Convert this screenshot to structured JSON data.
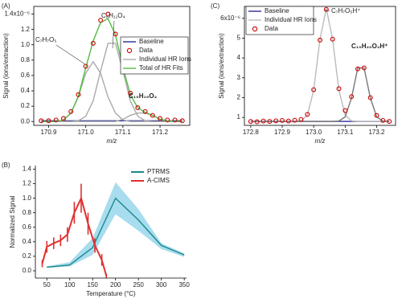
{
  "chart_data": [
    {
      "type": "line",
      "panel_label": "(A)",
      "x_label": "m/z",
      "y_label": "Signal (ions/extraction)",
      "frame": true,
      "legend": "upper right",
      "xlim": [
        170.86,
        171.28
      ],
      "ylim": [
        -0.05,
        1.5
      ],
      "xticks": [
        170.9,
        {
          "value": 171,
          "label": "171.0"
        },
        171.1,
        171.2
      ],
      "yticks": [
        {
          "value": 0,
          "label": "0.0"
        },
        0.2,
        0.4,
        0.6,
        0.8,
        {
          "value": 1,
          "label": "1.0"
        },
        1.2,
        {
          "value": 1.4,
          "label": "1.4x10⁻⁶"
        }
      ],
      "annotations": [
        "C₇H₇O₅",
        "C₈H₁₁O₄",
        "C₁₀H₁₉O₂"
      ],
      "x": [
        170.88,
        170.9,
        170.92,
        170.94,
        170.96,
        170.98,
        171.0,
        171.02,
        171.04,
        171.06,
        171.08,
        171.1,
        171.12,
        171.14,
        171.16,
        171.18,
        171.2,
        171.22,
        171.24,
        171.26
      ],
      "series": [
        {
          "name": "Baseline",
          "color": "#2b2b9a",
          "values": [
            0.01,
            0.01,
            0.01,
            0.01,
            0.01,
            0.01,
            0.01,
            0.01,
            0.01,
            0.01,
            0.01,
            0.01,
            0.01,
            0.01,
            0.01,
            0.01,
            0.01,
            0.01,
            0.01,
            0.01
          ]
        },
        {
          "name": "Data",
          "color": "#cc1111",
          "marker": "circle",
          "line": false,
          "values": [
            0.01,
            0.01,
            0.02,
            0.04,
            0.13,
            0.35,
            0.72,
            1.02,
            1.32,
            1.4,
            1.14,
            0.7,
            0.37,
            0.18,
            0.13,
            0.08,
            0.04,
            0.02,
            0.02,
            0.01
          ]
        },
        {
          "name": "Individual HR Ions",
          "color": "#aaaaaa",
          "values": [
            0,
            0,
            0,
            0.02,
            0.11,
            0.32,
            0.63,
            0.78,
            0.63,
            0.32,
            0.11,
            0.02,
            0,
            0,
            0,
            0,
            0,
            0,
            0,
            0
          ]
        },
        {
          "color": "#aaaaaa",
          "values": [
            0,
            0,
            0,
            0,
            0,
            0.01,
            0.07,
            0.27,
            0.66,
            1.02,
            1.02,
            0.66,
            0.27,
            0.07,
            0.01,
            0,
            0,
            0,
            0,
            0
          ]
        },
        {
          "color": "#aaaaaa",
          "values": [
            0,
            0,
            0,
            0,
            0,
            0,
            0,
            0,
            0,
            0,
            0,
            0.03,
            0.08,
            0.11,
            0.11,
            0.08,
            0.03,
            0.01,
            0,
            0
          ]
        },
        {
          "name": "Total of HR Fits",
          "color": "#55bb44",
          "values": [
            0,
            0,
            0,
            0.02,
            0.11,
            0.33,
            0.7,
            1.05,
            1.29,
            1.34,
            1.13,
            0.71,
            0.35,
            0.18,
            0.12,
            0.08,
            0.03,
            0.01,
            0,
            0
          ]
        }
      ]
    },
    {
      "type": "line",
      "panel_label": "(B)",
      "x_label": "Temperature (°C)",
      "y_label": "Normalized Signal",
      "frame": false,
      "legend": "upper right",
      "xlim": [
        25,
        355
      ],
      "ylim": [
        -0.1,
        1.45
      ],
      "xticks": [
        50,
        100,
        150,
        200,
        250,
        300,
        350
      ],
      "yticks": [
        {
          "value": 0,
          "label": "0.0"
        },
        0.2,
        0.4,
        0.6,
        0.8,
        {
          "value": 1,
          "label": "1.0"
        },
        1.2,
        1.4
      ],
      "series": [
        {
          "name": "PTRMS",
          "color": "#1a8a8a",
          "band_color": "#a8dcef",
          "x": [
            50,
            100,
            150,
            200,
            250,
            300,
            350
          ],
          "values": [
            0.05,
            0.08,
            0.32,
            1.0,
            0.7,
            0.35,
            0.22
          ],
          "lower": [
            0.04,
            0.06,
            0.22,
            0.78,
            0.55,
            0.3,
            0.19
          ],
          "upper": [
            0.06,
            0.12,
            0.45,
            1.22,
            0.85,
            0.38,
            0.24
          ]
        },
        {
          "name": "A-CIMS",
          "color": "#e03030",
          "x": [
            40,
            50,
            65,
            80,
            95,
            110,
            125,
            140,
            155,
            170,
            180
          ],
          "values": [
            0.1,
            0.33,
            0.38,
            0.42,
            0.5,
            0.8,
            1.0,
            0.65,
            0.35,
            0.15,
            -0.07
          ],
          "errors": [
            0.05,
            0.08,
            0.08,
            0.08,
            0.1,
            0.15,
            0.2,
            0.15,
            0.1,
            0.08,
            0.03
          ]
        }
      ]
    },
    {
      "type": "line",
      "panel_label": "(C)",
      "x_label": "m/z",
      "y_label": "Signal (ions/extraction)",
      "frame": true,
      "legend": "upper left",
      "xlim": [
        172.78,
        173.26
      ],
      "ylim": [
        0.6,
        6.6
      ],
      "xticks": [
        172.8,
        172.9,
        {
          "value": 173,
          "label": "173.0"
        },
        173.1,
        173.2
      ],
      "yticks": [
        1,
        2,
        3,
        4,
        5,
        {
          "value": 6,
          "label": "6x10⁻⁶"
        }
      ],
      "annotations": [
        "C₇H₇O₅H⁺",
        "C₁₀H₂₀O₂H⁺"
      ],
      "x": [
        172.8,
        172.82,
        172.84,
        172.86,
        172.88,
        172.9,
        172.92,
        172.94,
        172.96,
        172.98,
        173.0,
        173.02,
        173.04,
        173.06,
        173.08,
        173.1,
        173.12,
        173.14,
        173.16,
        173.18,
        173.2,
        173.22,
        173.24
      ],
      "series": [
        {
          "name": "Baseline",
          "color": "#2b2b9a",
          "values": [
            0.8,
            0.8,
            0.8,
            0.8,
            0.8,
            0.8,
            0.8,
            0.8,
            0.8,
            0.8,
            0.8,
            0.8,
            0.8,
            0.8,
            0.8,
            0.8,
            0.8,
            0.8,
            0.8,
            0.8,
            0.8,
            0.8,
            0.8
          ]
        },
        {
          "name": "Individual HR Ions",
          "color": "#bbbbbb",
          "values": [
            0.8,
            0.8,
            0.8,
            0.8,
            0.8,
            0.8,
            0.8,
            0.8,
            0.83,
            1.12,
            2.38,
            4.94,
            6.5,
            4.94,
            2.38,
            1.12,
            0.83,
            0.8,
            0.8,
            0.8,
            0.8,
            0.8,
            0.8
          ]
        },
        {
          "color": "#777777",
          "values": [
            0.8,
            0.8,
            0.8,
            0.8,
            0.8,
            0.8,
            0.8,
            0.8,
            0.8,
            0.8,
            0.8,
            0.8,
            0.8,
            0.8,
            0.82,
            1.03,
            1.98,
            3.5,
            3.5,
            1.98,
            1.03,
            0.82,
            0.8
          ]
        },
        {
          "name": "Data",
          "color": "#cc1111",
          "marker": "circle",
          "line": false,
          "values": [
            0.8,
            0.78,
            0.82,
            0.8,
            0.83,
            0.85,
            0.82,
            0.86,
            0.9,
            1.15,
            2.4,
            4.9,
            6.45,
            4.95,
            2.45,
            1.35,
            2.05,
            3.45,
            3.5,
            2.0,
            1.1,
            0.85,
            0.8
          ]
        }
      ]
    }
  ]
}
